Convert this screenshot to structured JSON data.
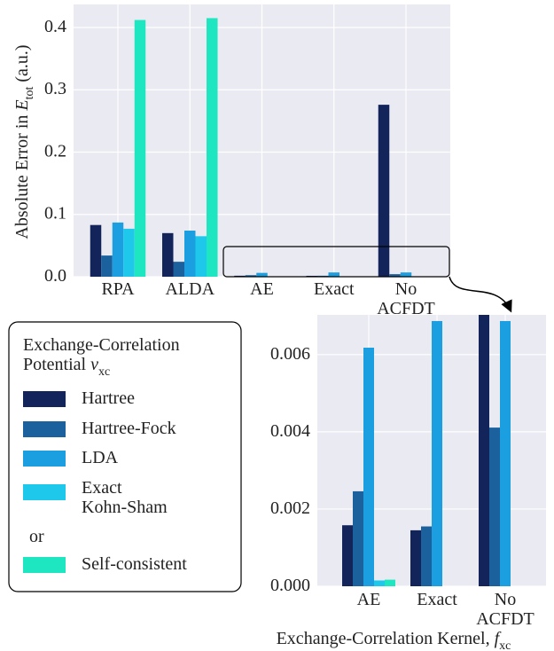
{
  "chart_data": {
    "type": "bar",
    "ylabel": "Absolute Error in E_tot (a.u.)",
    "xlabel": "Exchange-Correlation Kernel, f_xc",
    "categories": [
      "RPA",
      "ALDA",
      "AE",
      "Exact",
      "No\nACFDT"
    ],
    "series": [
      {
        "name": "Hartree",
        "color": "#13245a",
        "values": [
          0.083,
          0.07,
          0.00158,
          0.00145,
          0.276
        ]
      },
      {
        "name": "Hartree-Fock",
        "color": "#1a619e",
        "values": [
          0.034,
          0.024,
          0.00246,
          0.00155,
          0.00411
        ]
      },
      {
        "name": "LDA",
        "color": "#1c9fe0",
        "values": [
          0.087,
          0.074,
          0.00618,
          0.00687,
          0.00687
        ]
      },
      {
        "name": "Exact\nKohn-Sham",
        "color": "#1ec8ea",
        "values": [
          0.077,
          0.065,
          0.00015,
          null,
          null
        ]
      },
      {
        "name": "Self-consistent",
        "color": "#1ee6c0",
        "values": [
          0.412,
          0.415,
          0.00017,
          null,
          null
        ]
      }
    ],
    "ylim": [
      0,
      0.437
    ],
    "yticks": [
      {
        "value": 0,
        "label": "0.0"
      },
      {
        "value": 0.1,
        "label": "0.1"
      },
      {
        "value": 0.2,
        "label": "0.2"
      },
      {
        "value": 0.3,
        "label": "0.3"
      },
      {
        "value": 0.4,
        "label": "0.4"
      }
    ],
    "grid": true,
    "legend": {
      "title": "Exchange-Correlation\nPotential v_xc",
      "separator": "or"
    },
    "inset": {
      "ylim": [
        0,
        0.00703
      ],
      "yticks": [
        {
          "value": 0,
          "label": "0.000"
        },
        {
          "value": 0.002,
          "label": "0.002"
        },
        {
          "value": 0.004,
          "label": "0.004"
        },
        {
          "value": 0.006,
          "label": "0.006"
        }
      ]
    }
  }
}
